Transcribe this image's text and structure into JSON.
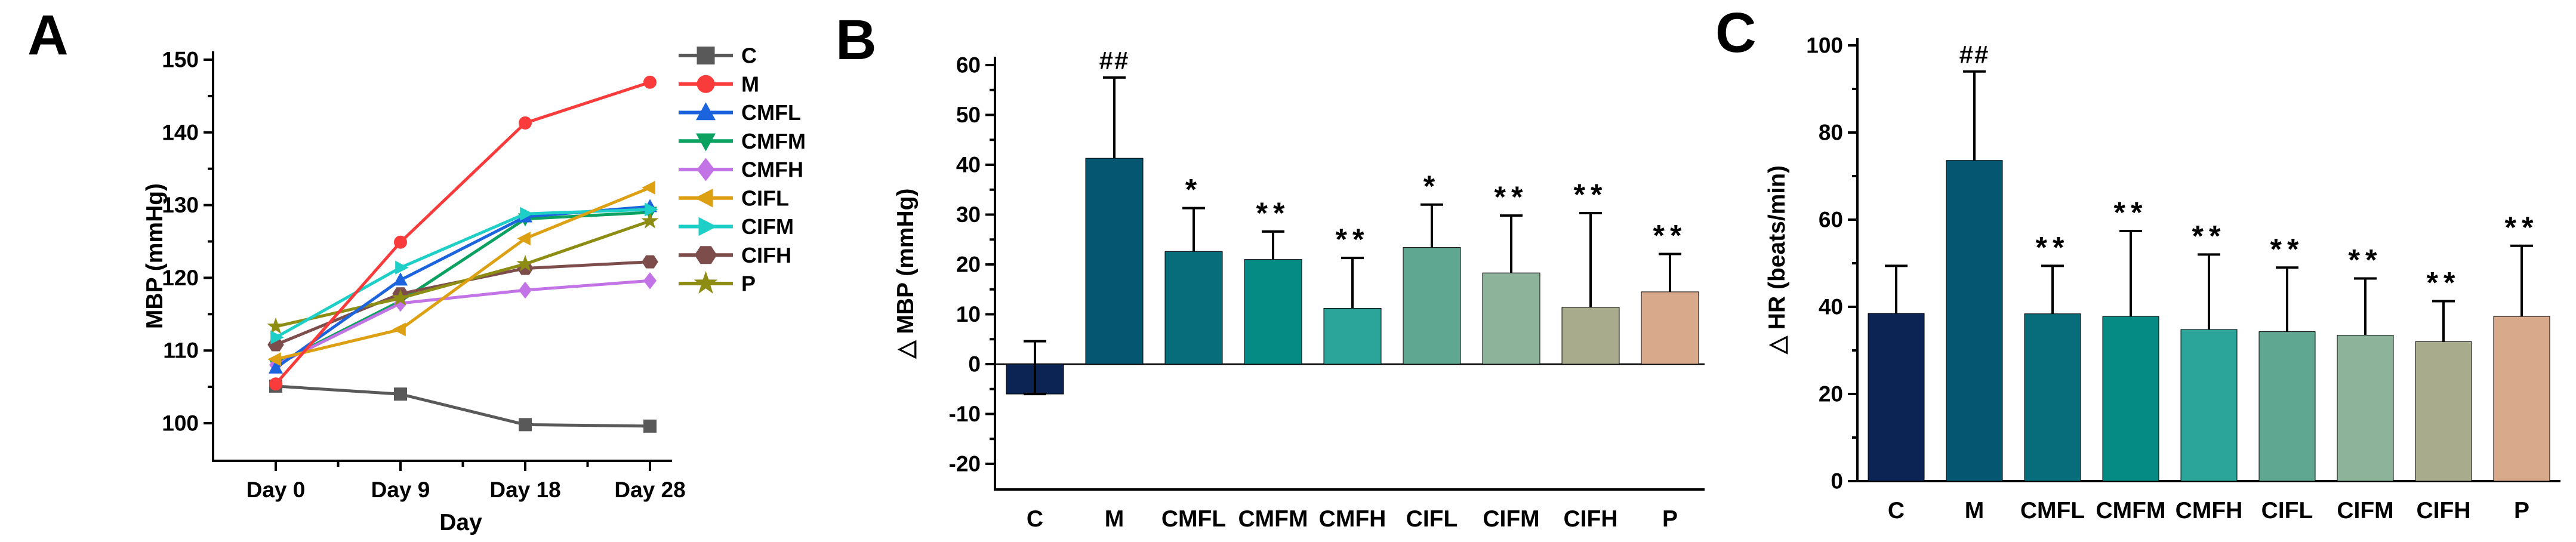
{
  "figure": {
    "panel_letters": [
      "A",
      "B",
      "C"
    ]
  },
  "chart_data": [
    {
      "panel_label": "A",
      "type": "line",
      "ylabel": "MBP (mmHg)",
      "xlabel": "Day",
      "x_categories": [
        "Day 0",
        "Day 9",
        "Day 18",
        "Day 28"
      ],
      "yticks": [
        100,
        110,
        120,
        130,
        140,
        150
      ],
      "ylim": [
        95,
        152
      ],
      "grid": "off",
      "legend_position": "right",
      "series": [
        {
          "name": "C",
          "color": "#595959",
          "marker": "square",
          "values": [
            105.1,
            104.0,
            99.8,
            99.6
          ]
        },
        {
          "name": "M",
          "color": "#f93b3b",
          "marker": "circle",
          "values": [
            105.4,
            124.9,
            141.3,
            146.9
          ]
        },
        {
          "name": "CMFL",
          "color": "#1c64dd",
          "marker": "triangle-up",
          "values": [
            107.6,
            119.7,
            128.4,
            129.8
          ]
        },
        {
          "name": "CMFM",
          "color": "#0aa161",
          "marker": "triangle-down",
          "values": [
            108.1,
            116.8,
            128.1,
            129.0
          ]
        },
        {
          "name": "CMFH",
          "color": "#c273e6",
          "marker": "diamond",
          "values": [
            108.0,
            116.5,
            118.3,
            119.6
          ]
        },
        {
          "name": "CIFL",
          "color": "#dda013",
          "marker": "triangle-left",
          "values": [
            108.8,
            112.9,
            125.4,
            132.4
          ]
        },
        {
          "name": "CIFM",
          "color": "#1ecfc7",
          "marker": "triangle-right",
          "values": [
            111.8,
            121.4,
            128.8,
            129.4
          ]
        },
        {
          "name": "CIFH",
          "color": "#7d4d4c",
          "marker": "hexagon",
          "values": [
            110.8,
            117.8,
            121.3,
            122.2
          ]
        },
        {
          "name": "P",
          "color": "#8d8c13",
          "marker": "star",
          "values": [
            113.3,
            117.2,
            121.9,
            127.8
          ]
        }
      ]
    },
    {
      "panel_label": "B",
      "type": "bar",
      "ylabel": "△ MBP (mmHg)",
      "categories": [
        "C",
        "M",
        "CMFL",
        "CMFM",
        "CMFH",
        "CIFL",
        "CIFM",
        "CIFH",
        "P"
      ],
      "yticks": [
        -20,
        -10,
        0,
        10,
        20,
        30,
        40,
        50,
        60
      ],
      "ylim": [
        -25,
        62
      ],
      "grid": "off",
      "bars": [
        {
          "name": "C",
          "color": "#0c2454",
          "value": -6.0,
          "err_top": 4.6,
          "err_bottom": -6.0,
          "sig": ""
        },
        {
          "name": "M",
          "color": "#055671",
          "value": 41.3,
          "err_top": 57.5,
          "sig": "##"
        },
        {
          "name": "CMFL",
          "color": "#076d7a",
          "value": 22.6,
          "err_top": 31.3,
          "sig": "*"
        },
        {
          "name": "CMFM",
          "color": "#058a84",
          "value": 21.0,
          "err_top": 26.6,
          "sig": "**"
        },
        {
          "name": "CMFH",
          "color": "#2ba499",
          "value": 11.2,
          "err_top": 21.3,
          "sig": "**"
        },
        {
          "name": "CIFL",
          "color": "#60a791",
          "value": 23.4,
          "err_top": 32.0,
          "sig": "*"
        },
        {
          "name": "CIFM",
          "color": "#8db39b",
          "value": 18.3,
          "err_top": 29.8,
          "sig": "**"
        },
        {
          "name": "CIFH",
          "color": "#a9ab8d",
          "value": 11.4,
          "err_top": 30.3,
          "sig": "**"
        },
        {
          "name": "P",
          "color": "#d9a98b",
          "value": 14.5,
          "err_top": 22.1,
          "sig": "**"
        }
      ]
    },
    {
      "panel_label": "C",
      "type": "bar",
      "ylabel": "△ HR (beats/min)",
      "categories": [
        "C",
        "M",
        "CMFL",
        "CMFM",
        "CMFH",
        "CIFL",
        "CIFM",
        "CIFH",
        "P"
      ],
      "yticks": [
        0,
        20,
        40,
        60,
        80,
        100
      ],
      "ylim": [
        0,
        102
      ],
      "grid": "off",
      "bars": [
        {
          "name": "C",
          "color": "#0c2454",
          "value": 38.5,
          "err_top": 49.4,
          "sig": ""
        },
        {
          "name": "M",
          "color": "#055671",
          "value": 73.6,
          "err_top": 94.0,
          "sig": "##"
        },
        {
          "name": "CMFL",
          "color": "#076d7a",
          "value": 38.4,
          "err_top": 49.4,
          "sig": "**"
        },
        {
          "name": "CMFM",
          "color": "#058a84",
          "value": 37.8,
          "err_top": 57.4,
          "sig": "**"
        },
        {
          "name": "CMFH",
          "color": "#2ba499",
          "value": 34.8,
          "err_top": 52.0,
          "sig": "**"
        },
        {
          "name": "CIFL",
          "color": "#60a791",
          "value": 34.3,
          "err_top": 49.0,
          "sig": "**"
        },
        {
          "name": "CIFM",
          "color": "#8db39b",
          "value": 33.5,
          "err_top": 46.5,
          "sig": "**"
        },
        {
          "name": "CIFH",
          "color": "#a9ab8d",
          "value": 32.0,
          "err_top": 41.3,
          "sig": "**"
        },
        {
          "name": "P",
          "color": "#d9a98b",
          "value": 37.8,
          "err_top": 54.0,
          "sig": "**"
        }
      ]
    }
  ]
}
